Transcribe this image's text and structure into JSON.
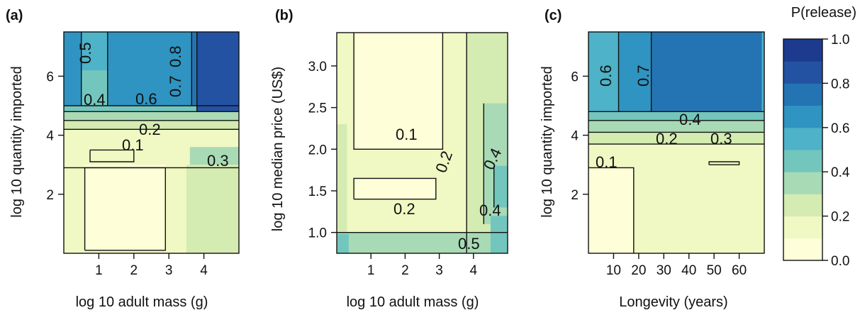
{
  "legend": {
    "title": "P(release)",
    "ticks": [
      "0.0",
      "0.2",
      "0.4",
      "0.6",
      "0.8",
      "1.0"
    ],
    "bins": [
      0.0,
      0.1,
      0.2,
      0.3,
      0.4,
      0.5,
      0.6,
      0.7,
      0.8,
      0.9,
      1.0
    ],
    "colors": [
      "#fefed9",
      "#f0f8c3",
      "#d4ebb1",
      "#a8dab5",
      "#73c6bd",
      "#4eb2c8",
      "#2f94c1",
      "#2474b4",
      "#2452a3",
      "#1c3b8f"
    ]
  },
  "chart_data": [
    {
      "type": "heatmap",
      "panel": "(a)",
      "xlabel": "log 10 adult mass (g)",
      "ylabel": "log 10 quantity imported",
      "xlim": [
        0,
        5
      ],
      "ylim": [
        0,
        7.5
      ],
      "xticks": [
        "1",
        "2",
        "3",
        "4"
      ],
      "yticks": [
        "2",
        "4",
        "6"
      ],
      "contour_labels": [
        "0.5",
        "0.7",
        "0.8",
        "0.4",
        "0.6",
        "0.2",
        "0.1",
        "0.3"
      ],
      "regions": [
        {
          "level": 0.15,
          "poly": [
            [
              0,
              0
            ],
            [
              5,
              0
            ],
            [
              5,
              3
            ],
            [
              0,
              3
            ]
          ]
        },
        {
          "level": 0.25,
          "poly": [
            [
              3.5,
              0
            ],
            [
              5,
              0
            ],
            [
              5,
              3
            ],
            [
              3.5,
              3
            ]
          ]
        },
        {
          "level": 0.05,
          "poly": [
            [
              0.6,
              0.1
            ],
            [
              2.9,
              0.1
            ],
            [
              2.9,
              3.5
            ],
            [
              0.6,
              3.5
            ]
          ]
        },
        {
          "level": 0.15,
          "poly": [
            [
              0,
              3
            ],
            [
              5,
              3
            ],
            [
              5,
              4.2
            ],
            [
              0,
              4.2
            ]
          ]
        },
        {
          "level": 0.35,
          "poly": [
            [
              3.6,
              3
            ],
            [
              5,
              3
            ],
            [
              5,
              3.6
            ],
            [
              3.6,
              3.6
            ]
          ]
        },
        {
          "level": 0.25,
          "poly": [
            [
              0,
              4.2
            ],
            [
              5,
              4.2
            ],
            [
              5,
              4.5
            ],
            [
              0,
              4.5
            ]
          ]
        },
        {
          "level": 0.35,
          "poly": [
            [
              0,
              4.5
            ],
            [
              5,
              4.5
            ],
            [
              5,
              4.8
            ],
            [
              0,
              4.8
            ]
          ]
        },
        {
          "level": 0.45,
          "poly": [
            [
              0,
              4.8
            ],
            [
              5,
              4.8
            ],
            [
              5,
              5
            ],
            [
              0,
              5
            ]
          ]
        },
        {
          "level": 0.65,
          "poly": [
            [
              0,
              5
            ],
            [
              5,
              5
            ],
            [
              5,
              7.5
            ],
            [
              0,
              7.5
            ]
          ]
        },
        {
          "level": 0.55,
          "poly": [
            [
              0.5,
              5
            ],
            [
              1.25,
              5
            ],
            [
              1.25,
              7.5
            ],
            [
              0.5,
              7.5
            ]
          ]
        },
        {
          "level": 0.45,
          "poly": [
            [
              0.5,
              5
            ],
            [
              1.25,
              5
            ],
            [
              1.25,
              6.2
            ],
            [
              0.5,
              6.2
            ]
          ]
        },
        {
          "level": 0.75,
          "poly": [
            [
              3.65,
              5
            ],
            [
              3.8,
              5
            ],
            [
              3.8,
              7.5
            ],
            [
              3.65,
              7.5
            ]
          ]
        },
        {
          "level": 0.85,
          "poly": [
            [
              3.8,
              4.8
            ],
            [
              5,
              4.8
            ],
            [
              5,
              7.5
            ],
            [
              3.8,
              7.5
            ]
          ]
        }
      ],
      "lines": [
        [
          [
            0.6,
            0.1
          ],
          [
            2.9,
            0.1
          ],
          [
            2.9,
            2.9
          ],
          [
            0.6,
            2.9
          ],
          [
            0.6,
            0.1
          ]
        ],
        [
          [
            0.75,
            3.5
          ],
          [
            2,
            3.5
          ],
          [
            2,
            3.1
          ],
          [
            0.75,
            3.1
          ],
          [
            0.75,
            3.5
          ]
        ],
        [
          [
            0,
            2.9
          ],
          [
            5,
            2.9
          ]
        ],
        [
          [
            0,
            4.2
          ],
          [
            5,
            4.2
          ]
        ],
        [
          [
            0,
            4.5
          ],
          [
            5,
            4.5
          ]
        ],
        [
          [
            0,
            4.8
          ],
          [
            5,
            4.8
          ]
        ],
        [
          [
            0,
            5
          ],
          [
            5,
            5
          ]
        ],
        [
          [
            0.5,
            5
          ],
          [
            0.5,
            7.5
          ]
        ],
        [
          [
            1.25,
            5
          ],
          [
            1.25,
            7.5
          ]
        ],
        [
          [
            3.65,
            5
          ],
          [
            3.65,
            7.5
          ]
        ],
        [
          [
            3.8,
            4.8
          ],
          [
            3.8,
            7.5
          ]
        ]
      ]
    },
    {
      "type": "heatmap",
      "panel": "(b)",
      "xlabel": "log 10 adult mass (g)",
      "ylabel": "log 10 median price (US$)",
      "xlim": [
        0,
        5
      ],
      "ylim": [
        0.75,
        3.4
      ],
      "xticks": [
        "1",
        "2",
        "3",
        "4"
      ],
      "yticks": [
        "1.0",
        "1.5",
        "2.0",
        "2.5",
        "3.0"
      ],
      "contour_labels": [
        "0.1",
        "0.2",
        "0.4",
        "0.2",
        "0.4",
        "0.5"
      ],
      "regions": [
        {
          "level": 0.15,
          "poly": [
            [
              0,
              0.75
            ],
            [
              5,
              0.75
            ],
            [
              5,
              3.4
            ],
            [
              0,
              3.4
            ]
          ]
        },
        {
          "level": 0.25,
          "poly": [
            [
              3.8,
              0.75
            ],
            [
              5,
              0.75
            ],
            [
              5,
              3.4
            ],
            [
              3.8,
              3.4
            ]
          ]
        },
        {
          "level": 0.35,
          "poly": [
            [
              4.3,
              1.1
            ],
            [
              5,
              1.1
            ],
            [
              5,
              2.55
            ],
            [
              4.3,
              2.55
            ]
          ]
        },
        {
          "level": 0.45,
          "poly": [
            [
              4.6,
              1.3
            ],
            [
              5,
              1.3
            ],
            [
              5,
              1.8
            ],
            [
              4.6,
              1.8
            ]
          ]
        },
        {
          "level": 0.25,
          "poly": [
            [
              0,
              1
            ],
            [
              0.3,
              1
            ],
            [
              0.3,
              2.3
            ],
            [
              0,
              2.3
            ]
          ]
        },
        {
          "level": 0.35,
          "poly": [
            [
              0,
              0.75
            ],
            [
              5,
              0.75
            ],
            [
              5,
              1
            ],
            [
              0,
              1
            ]
          ]
        },
        {
          "level": 0.45,
          "poly": [
            [
              0,
              0.75
            ],
            [
              0.35,
              0.75
            ],
            [
              0.35,
              0.98
            ],
            [
              0,
              0.98
            ]
          ]
        },
        {
          "level": 0.45,
          "poly": [
            [
              4.5,
              0.75
            ],
            [
              5,
              0.75
            ],
            [
              5,
              1.2
            ],
            [
              4.5,
              1.2
            ]
          ]
        },
        {
          "level": 0.05,
          "poly": [
            [
              0.5,
              2
            ],
            [
              3.1,
              2
            ],
            [
              3.1,
              3.4
            ],
            [
              0.5,
              3.4
            ]
          ]
        },
        {
          "level": 0.05,
          "poly": [
            [
              0.5,
              1.4
            ],
            [
              2.9,
              1.4
            ],
            [
              2.9,
              1.65
            ],
            [
              0.5,
              1.65
            ]
          ]
        }
      ],
      "lines": [
        [
          [
            0.5,
            3.4
          ],
          [
            0.5,
            2
          ],
          [
            3.1,
            2
          ],
          [
            3.1,
            3.4
          ]
        ],
        [
          [
            0.5,
            1.4
          ],
          [
            2.9,
            1.4
          ],
          [
            2.9,
            1.65
          ],
          [
            0.5,
            1.65
          ],
          [
            0.5,
            1.4
          ]
        ],
        [
          [
            0,
            1
          ],
          [
            5,
            1
          ]
        ],
        [
          [
            3.8,
            0.75
          ],
          [
            3.8,
            3.4
          ]
        ],
        [
          [
            4.3,
            1.1
          ],
          [
            4.3,
            2.55
          ]
        ],
        [
          [
            4.6,
            1.3
          ],
          [
            4.6,
            1.8
          ]
        ]
      ]
    },
    {
      "type": "heatmap",
      "panel": "(c)",
      "xlabel": "Longevity (years)",
      "ylabel": "log 10 quantity imported",
      "xlim": [
        0,
        70
      ],
      "ylim": [
        0,
        7.5
      ],
      "xticks": [
        "10",
        "20",
        "30",
        "40",
        "50",
        "60"
      ],
      "yticks": [
        "2",
        "4",
        "6"
      ],
      "contour_labels": [
        "0.6",
        "0.7",
        "0.4",
        "0.2",
        "0.3",
        "0.1"
      ],
      "regions": [
        {
          "level": 0.15,
          "poly": [
            [
              0,
              0
            ],
            [
              70,
              0
            ],
            [
              70,
              3.7
            ],
            [
              0,
              3.7
            ]
          ]
        },
        {
          "level": 0.05,
          "poly": [
            [
              0,
              0
            ],
            [
              18,
              0
            ],
            [
              18,
              2.9
            ],
            [
              0,
              2.9
            ]
          ]
        },
        {
          "level": 0.25,
          "poly": [
            [
              0,
              3.7
            ],
            [
              70,
              3.7
            ],
            [
              70,
              4.1
            ],
            [
              0,
              4.1
            ]
          ]
        },
        {
          "level": 0.35,
          "poly": [
            [
              0,
              4.1
            ],
            [
              70,
              4.1
            ],
            [
              70,
              4.5
            ],
            [
              0,
              4.5
            ]
          ]
        },
        {
          "level": 0.45,
          "poly": [
            [
              0,
              4.5
            ],
            [
              70,
              4.5
            ],
            [
              70,
              4.8
            ],
            [
              0,
              4.8
            ]
          ]
        },
        {
          "level": 0.55,
          "poly": [
            [
              0,
              4.8
            ],
            [
              70,
              4.8
            ],
            [
              70,
              7.5
            ],
            [
              0,
              7.5
            ]
          ]
        },
        {
          "level": 0.65,
          "poly": [
            [
              12,
              4.8
            ],
            [
              25,
              4.8
            ],
            [
              25,
              7.5
            ],
            [
              12,
              7.5
            ]
          ]
        },
        {
          "level": 0.75,
          "poly": [
            [
              25,
              4.8
            ],
            [
              69,
              4.8
            ],
            [
              69,
              7.5
            ],
            [
              25,
              7.5
            ]
          ]
        }
      ],
      "lines": [
        [
          [
            0,
            2.9
          ],
          [
            18,
            2.9
          ],
          [
            18,
            0
          ]
        ],
        [
          [
            0,
            3.7
          ],
          [
            70,
            3.7
          ]
        ],
        [
          [
            0,
            4.1
          ],
          [
            70,
            4.1
          ]
        ],
        [
          [
            0,
            4.5
          ],
          [
            70,
            4.5
          ]
        ],
        [
          [
            0,
            4.8
          ],
          [
            70,
            4.8
          ]
        ],
        [
          [
            12,
            4.8
          ],
          [
            12,
            7.5
          ]
        ],
        [
          [
            25,
            4.8
          ],
          [
            25,
            7.5
          ]
        ],
        [
          [
            48,
            3
          ],
          [
            60,
            3
          ],
          [
            60,
            3.1
          ],
          [
            48,
            3.1
          ],
          [
            48,
            3
          ]
        ]
      ]
    }
  ]
}
